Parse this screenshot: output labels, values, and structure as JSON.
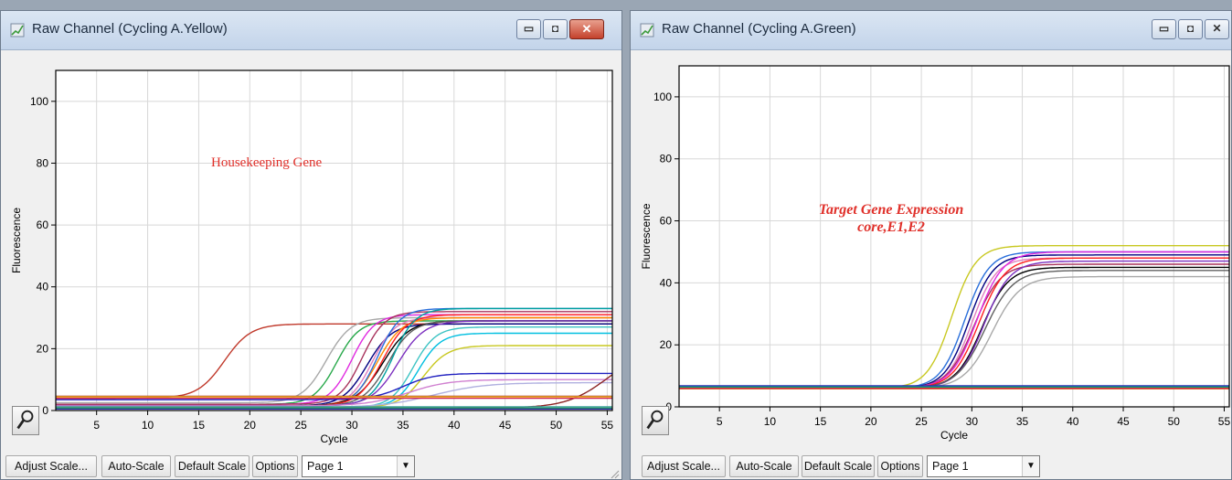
{
  "left_window": {
    "title": "Raw Channel (Cycling A.Yellow)",
    "annotation": "Housekeeping Gene",
    "annotation_color": "#e0302a",
    "buttons": {
      "adjust_scale": "Adjust Scale...",
      "auto_scale": "Auto-Scale",
      "default_scale": "Default Scale",
      "options": "Options"
    },
    "page_select": "Page 1"
  },
  "right_window": {
    "title": "Raw Channel (Cycling A.Green)",
    "annotation_line1": "Target Gene Expression",
    "annotation_line2": "core,E1,E2",
    "annotation_color": "#e0302a",
    "buttons": {
      "adjust_scale": "Adjust Scale...",
      "auto_scale": "Auto-Scale",
      "default_scale": "Default Scale",
      "options": "Options"
    },
    "page_select": "Page 1"
  },
  "icons": {
    "title_icon": "chart-icon",
    "minimize": "minimize-icon",
    "maximize": "maximize-icon",
    "close": "close-icon",
    "tool": "magnify-tool-icon"
  },
  "chart_data": [
    {
      "type": "line",
      "xlabel": "Cycle",
      "ylabel": "Fluorescence",
      "xlim": [
        1,
        55.5
      ],
      "ylim": [
        0,
        110
      ],
      "x_ticks": [
        5,
        10,
        15,
        20,
        25,
        30,
        35,
        40,
        45,
        50,
        55
      ],
      "y_ticks": [
        0,
        20,
        40,
        60,
        80,
        100
      ],
      "grid": true,
      "curve_model": "sigmoid: baseline + (plateau - baseline) / (1 + exp(-(cycle - midpoint) / slope))",
      "series": [
        {
          "color": "#c0392b",
          "baseline": 4.0,
          "plateau": 28,
          "midpoint": 17.5,
          "slope": 1.3
        },
        {
          "color": "#a8a8a8",
          "baseline": 2.5,
          "plateau": 30,
          "midpoint": 27.5,
          "slope": 1.2
        },
        {
          "color": "#27a84a",
          "baseline": 2.0,
          "plateau": 29,
          "midpoint": 28.5,
          "slope": 1.1
        },
        {
          "color": "#e02ae0",
          "baseline": 2.0,
          "plateau": 31,
          "midpoint": 30.0,
          "slope": 1.1
        },
        {
          "color": "#a8325c",
          "baseline": 2.0,
          "plateau": 32,
          "midpoint": 31.0,
          "slope": 1.1
        },
        {
          "color": "#000080",
          "baseline": 1.5,
          "plateau": 28,
          "midpoint": 31.5,
          "slope": 1.2
        },
        {
          "color": "#e07fbf",
          "baseline": 1.5,
          "plateau": 30,
          "midpoint": 32.0,
          "slope": 1.1
        },
        {
          "color": "#ff8c00",
          "baseline": 1.5,
          "plateau": 30,
          "midpoint": 32.5,
          "slope": 1.2
        },
        {
          "color": "#2a6fdb",
          "baseline": 1.5,
          "plateau": 33,
          "midpoint": 32.5,
          "slope": 1.1
        },
        {
          "color": "#000000",
          "baseline": 1.5,
          "plateau": 29,
          "midpoint": 33.0,
          "slope": 1.3
        },
        {
          "color": "#ff2020",
          "baseline": 1.5,
          "plateau": 31,
          "midpoint": 33.0,
          "slope": 1.2
        },
        {
          "color": "#606060",
          "baseline": 1.5,
          "plateau": 29,
          "midpoint": 33.5,
          "slope": 1.2
        },
        {
          "color": "#00a0a0",
          "baseline": 1.5,
          "plateau": 33,
          "midpoint": 34.0,
          "slope": 1.1
        },
        {
          "color": "#7b2fbf",
          "baseline": 1.5,
          "plateau": 29,
          "midpoint": 34.5,
          "slope": 1.3
        },
        {
          "color": "#3cc3c3",
          "baseline": 1.0,
          "plateau": 27,
          "midpoint": 36.0,
          "slope": 1.1
        },
        {
          "color": "#00bfe0",
          "baseline": 1.0,
          "plateau": 25,
          "midpoint": 36.5,
          "slope": 1.1
        },
        {
          "color": "#c8c820",
          "baseline": 1.0,
          "plateau": 21,
          "midpoint": 37.0,
          "slope": 1.2
        },
        {
          "color": "#2020c0",
          "baseline": 3.5,
          "plateau": 12,
          "midpoint": 35.0,
          "slope": 1.5
        },
        {
          "color": "#d080d0",
          "baseline": 1.5,
          "plateau": 10,
          "midpoint": 35.5,
          "slope": 2.0
        },
        {
          "color": "#b0b0e0",
          "baseline": 1.0,
          "plateau": 9,
          "midpoint": 38.0,
          "slope": 2.5
        },
        {
          "color": "#8b2323",
          "baseline": 0.8,
          "plateau": 20,
          "midpoint": 55.0,
          "slope": 2.0
        },
        {
          "color": "#a01c1c",
          "baseline": 4.6,
          "plateau": 4.6,
          "midpoint": 30,
          "slope": 1
        },
        {
          "color": "#d02050",
          "baseline": 4.0,
          "plateau": 4.0,
          "midpoint": 30,
          "slope": 1
        },
        {
          "color": "#f0c020",
          "baseline": 4.4,
          "plateau": 4.4,
          "midpoint": 30,
          "slope": 1
        },
        {
          "color": "#20b040",
          "baseline": 0.8,
          "plateau": 0.8,
          "midpoint": 30,
          "slope": 1
        },
        {
          "color": "#3030b0",
          "baseline": 0.5,
          "plateau": 0.5,
          "midpoint": 30,
          "slope": 1
        },
        {
          "color": "#40a0a0",
          "baseline": 1.2,
          "plateau": 1.2,
          "midpoint": 30,
          "slope": 1
        }
      ]
    },
    {
      "type": "line",
      "xlabel": "Cycle",
      "ylabel": "Fluorescence",
      "xlim": [
        1,
        55.5
      ],
      "ylim": [
        0,
        110
      ],
      "x_ticks": [
        5,
        10,
        15,
        20,
        25,
        30,
        35,
        40,
        45,
        50,
        55
      ],
      "y_ticks": [
        0,
        20,
        40,
        60,
        80,
        100
      ],
      "grid": true,
      "curve_model": "sigmoid: baseline + (plateau - baseline) / (1 + exp(-(cycle - midpoint) / slope))",
      "series": [
        {
          "color": "#c8c820",
          "baseline": 6.0,
          "plateau": 52,
          "midpoint": 28.0,
          "slope": 1.2
        },
        {
          "color": "#2a6fdb",
          "baseline": 6.0,
          "plateau": 50,
          "midpoint": 29.3,
          "slope": 1.2
        },
        {
          "color": "#000080",
          "baseline": 6.0,
          "plateau": 49,
          "midpoint": 29.7,
          "slope": 1.2
        },
        {
          "color": "#e07fbf",
          "baseline": 6.0,
          "plateau": 48,
          "midpoint": 30.0,
          "slope": 1.2
        },
        {
          "color": "#a8325c",
          "baseline": 6.0,
          "plateau": 46,
          "midpoint": 30.2,
          "slope": 1.3
        },
        {
          "color": "#e02ae0",
          "baseline": 6.0,
          "plateau": 50,
          "midpoint": 30.5,
          "slope": 1.3
        },
        {
          "color": "#ff2020",
          "baseline": 6.0,
          "plateau": 48,
          "midpoint": 30.7,
          "slope": 1.3
        },
        {
          "color": "#000000",
          "baseline": 6.0,
          "plateau": 45,
          "midpoint": 31.0,
          "slope": 1.3
        },
        {
          "color": "#7b2fbf",
          "baseline": 6.0,
          "plateau": 47,
          "midpoint": 31.2,
          "slope": 1.3
        },
        {
          "color": "#606060",
          "baseline": 6.0,
          "plateau": 44,
          "midpoint": 31.3,
          "slope": 1.4
        },
        {
          "color": "#a8a8a8",
          "baseline": 6.0,
          "plateau": 42,
          "midpoint": 32.0,
          "slope": 1.4
        },
        {
          "color": "#00a0a0",
          "baseline": 6.5,
          "plateau": 6.5,
          "midpoint": 30,
          "slope": 1
        },
        {
          "color": "#20b040",
          "baseline": 6.2,
          "plateau": 6.2,
          "midpoint": 30,
          "slope": 1
        },
        {
          "color": "#3030b0",
          "baseline": 6.8,
          "plateau": 6.8,
          "midpoint": 30,
          "slope": 1
        },
        {
          "color": "#e09020",
          "baseline": 5.8,
          "plateau": 5.8,
          "midpoint": 30,
          "slope": 1
        },
        {
          "color": "#d02050",
          "baseline": 6.0,
          "plateau": 6.0,
          "midpoint": 30,
          "slope": 1
        }
      ]
    }
  ]
}
